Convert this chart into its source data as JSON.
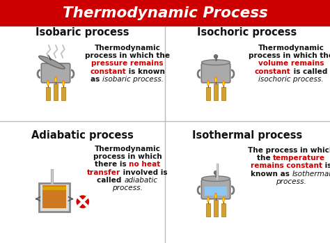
{
  "title": "Thermodynamic Process",
  "title_bg": "#cc0000",
  "title_color": "#ffffff",
  "bg_color": "#ffffff",
  "panel_texts": [
    {
      "lines": [
        [
          {
            "t": "Thermodynamic",
            "c": "#111111",
            "b": true,
            "i": false
          }
        ],
        [
          {
            "t": "process in which the",
            "c": "#111111",
            "b": true,
            "i": false
          }
        ],
        [
          {
            "t": "pressure remains",
            "c": "#cc0000",
            "b": true,
            "i": false
          }
        ],
        [
          {
            "t": "constant",
            "c": "#cc0000",
            "b": true,
            "i": false
          },
          {
            "t": " is known",
            "c": "#111111",
            "b": true,
            "i": false
          }
        ],
        [
          {
            "t": "as ",
            "c": "#111111",
            "b": true,
            "i": false
          },
          {
            "t": "isobaric process.",
            "c": "#111111",
            "b": false,
            "i": true
          }
        ]
      ]
    },
    {
      "lines": [
        [
          {
            "t": "Thermodynamic",
            "c": "#111111",
            "b": true,
            "i": false
          }
        ],
        [
          {
            "t": "process in which the",
            "c": "#111111",
            "b": true,
            "i": false
          }
        ],
        [
          {
            "t": "volume remains",
            "c": "#cc0000",
            "b": true,
            "i": false
          }
        ],
        [
          {
            "t": "constant",
            "c": "#cc0000",
            "b": true,
            "i": false
          },
          {
            "t": " is called",
            "c": "#111111",
            "b": true,
            "i": false
          }
        ],
        [
          {
            "t": "isochoric process.",
            "c": "#111111",
            "b": false,
            "i": true
          }
        ]
      ]
    },
    {
      "lines": [
        [
          {
            "t": "Thermodynamic",
            "c": "#111111",
            "b": true,
            "i": false
          }
        ],
        [
          {
            "t": "process in which",
            "c": "#111111",
            "b": true,
            "i": false
          }
        ],
        [
          {
            "t": "there is ",
            "c": "#111111",
            "b": true,
            "i": false
          },
          {
            "t": "no heat",
            "c": "#cc0000",
            "b": true,
            "i": false
          }
        ],
        [
          {
            "t": "transfer",
            "c": "#cc0000",
            "b": true,
            "i": false
          },
          {
            "t": " involved is",
            "c": "#111111",
            "b": true,
            "i": false
          }
        ],
        [
          {
            "t": "called ",
            "c": "#111111",
            "b": true,
            "i": false
          },
          {
            "t": "adiabatic",
            "c": "#111111",
            "b": false,
            "i": true
          }
        ],
        [
          {
            "t": "process.",
            "c": "#111111",
            "b": false,
            "i": true
          }
        ]
      ]
    },
    {
      "lines": [
        [
          {
            "t": "The process in which",
            "c": "#111111",
            "b": true,
            "i": false
          }
        ],
        [
          {
            "t": "the ",
            "c": "#111111",
            "b": true,
            "i": false
          },
          {
            "t": "temperature",
            "c": "#cc0000",
            "b": true,
            "i": false
          }
        ],
        [
          {
            "t": "remains constant",
            "c": "#cc0000",
            "b": true,
            "i": false
          },
          {
            "t": " is",
            "c": "#111111",
            "b": true,
            "i": false
          }
        ],
        [
          {
            "t": "known as ",
            "c": "#111111",
            "b": true,
            "i": false
          },
          {
            "t": "Isothermal",
            "c": "#111111",
            "b": false,
            "i": true
          }
        ],
        [
          {
            "t": "process.",
            "c": "#111111",
            "b": false,
            "i": true
          }
        ]
      ]
    }
  ],
  "panel_titles": [
    "Isobaric process",
    "Isochoric process",
    "Adiabatic process",
    "Isothermal process"
  ]
}
